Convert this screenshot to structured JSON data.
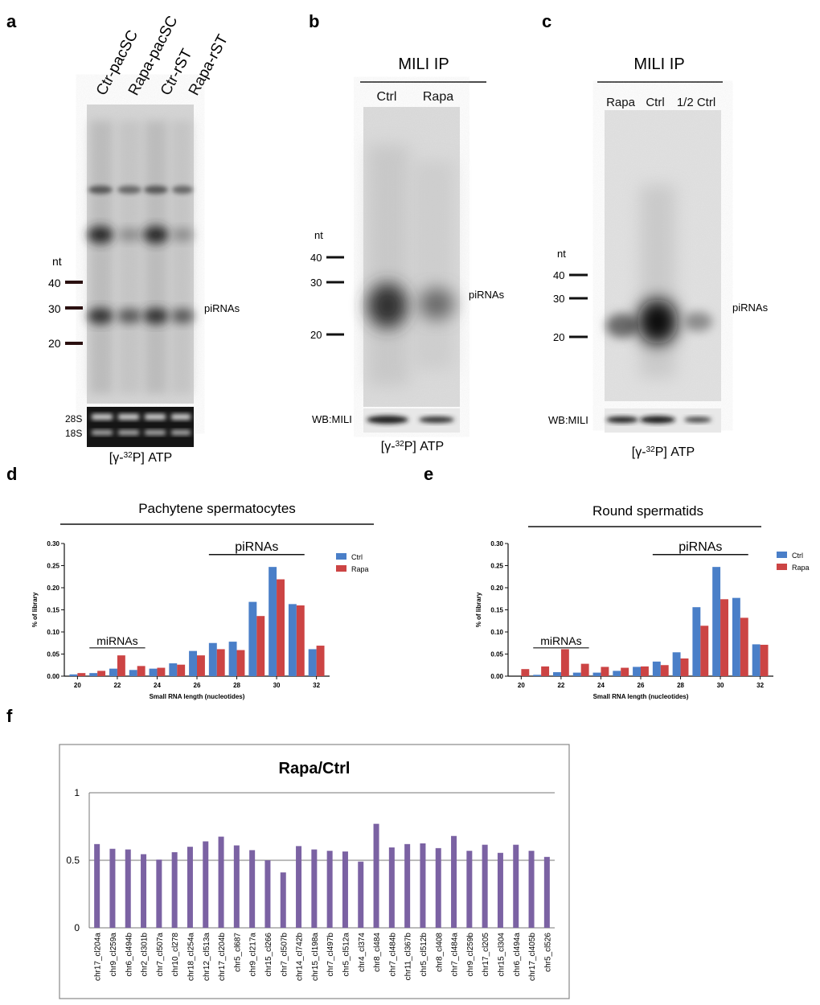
{
  "panel_a": {
    "letter": "a",
    "lanes": [
      "Ctr-pacSC",
      "Rapa-pacSC",
      "Ctr-rST",
      "Rapa-rST"
    ],
    "nt_label": "nt",
    "markers": [
      "40",
      "30",
      "20"
    ],
    "band_label": "piRNAs",
    "rrna_labels": [
      "28S",
      "18S"
    ],
    "caption": "[γ-32P] ATP"
  },
  "panel_b": {
    "letter": "b",
    "title": "MILI IP",
    "lanes": [
      "Ctrl",
      "Rapa"
    ],
    "nt_label": "nt",
    "markers": [
      "40",
      "30",
      "20"
    ],
    "band_label": "piRNAs",
    "wb_label": "WB:MILI",
    "caption": "[γ-32P] ATP"
  },
  "panel_c": {
    "letter": "c",
    "title": "MILI IP",
    "lanes": [
      "Rapa",
      "Ctrl",
      "1/2 Ctrl"
    ],
    "nt_label": "nt",
    "markers": [
      "40",
      "30",
      "20"
    ],
    "band_label": "piRNAs",
    "wb_label": "WB:MILI",
    "caption": "[γ-32P] ATP"
  },
  "colors": {
    "ctrl": "#4a7fc8",
    "rapa": "#cc4444",
    "purple": "#7b62a3"
  },
  "chart_data": [
    {
      "id": "d",
      "type": "bar",
      "letter": "d",
      "title": "Pachytene spermatocytes",
      "xlabel": "Small RNA length (nucleotides)",
      "ylabel": "% of library",
      "ylim": [
        0,
        0.3
      ],
      "yticks": [
        "0.00",
        "0.05",
        "0.10",
        "0.15",
        "0.20",
        "0.25",
        "0.30"
      ],
      "categories": [
        20,
        21,
        22,
        23,
        24,
        25,
        26,
        27,
        28,
        29,
        30,
        31,
        32
      ],
      "xticks": [
        "20",
        "22",
        "24",
        "26",
        "28",
        "30",
        "32"
      ],
      "series": [
        {
          "name": "Ctrl",
          "values": [
            0.004,
            0.007,
            0.017,
            0.014,
            0.017,
            0.029,
            0.057,
            0.075,
            0.078,
            0.168,
            0.247,
            0.163,
            0.061
          ]
        },
        {
          "name": "Rapa",
          "values": [
            0.007,
            0.012,
            0.047,
            0.023,
            0.019,
            0.026,
            0.047,
            0.061,
            0.059,
            0.136,
            0.219,
            0.16,
            0.069
          ]
        }
      ],
      "annotations": {
        "mirnas": "miRNAs",
        "pirnas": "piRNAs"
      },
      "legend": "top-right"
    },
    {
      "id": "e",
      "type": "bar",
      "letter": "e",
      "title": "Round spermatids",
      "xlabel": "Small RNA length (nucleotides)",
      "ylabel": "% of library",
      "ylim": [
        0,
        0.3
      ],
      "yticks": [
        "0.00",
        "0.05",
        "0.10",
        "0.15",
        "0.20",
        "0.25",
        "0.30"
      ],
      "categories": [
        20,
        21,
        22,
        23,
        24,
        25,
        26,
        27,
        28,
        29,
        30,
        31,
        32
      ],
      "xticks": [
        "20",
        "22",
        "24",
        "26",
        "28",
        "30",
        "32"
      ],
      "series": [
        {
          "name": "Ctrl",
          "values": [
            0.0,
            0.003,
            0.009,
            0.008,
            0.008,
            0.012,
            0.021,
            0.033,
            0.054,
            0.156,
            0.247,
            0.177,
            0.072
          ]
        },
        {
          "name": "Rapa",
          "values": [
            0.016,
            0.022,
            0.061,
            0.028,
            0.021,
            0.019,
            0.022,
            0.025,
            0.04,
            0.114,
            0.174,
            0.132,
            0.071
          ]
        }
      ],
      "annotations": {
        "mirnas": "miRNAs",
        "pirnas": "piRNAs"
      },
      "legend": "top-right"
    },
    {
      "id": "f",
      "type": "bar",
      "letter": "f",
      "title": "Rapa/Ctrl",
      "ylim": [
        0,
        1
      ],
      "yticks": [
        "0",
        "0.5",
        "1"
      ],
      "categories": [
        "chr17_cl204a",
        "chr9_cl259a",
        "chr6_cl494b",
        "chr2_cl301b",
        "chr7_cl507a",
        "chr10_cl278",
        "chr18_cl254a",
        "chr12_cl513a",
        "chr17_cl204b",
        "chr5_cl687",
        "chr9_cl217a",
        "chr15_cl266",
        "chr7_cl507b",
        "chr14_cl742b",
        "chr15_cl198a",
        "chr7_cl497b",
        "chr5_cl512a",
        "chr4_cl374",
        "chr8_cl484",
        "chr7_cl484b",
        "chr11_cl367b",
        "chr5_cl512b",
        "chr8_cl408",
        "chr7_cl484a",
        "chr9_cl259b",
        "chr17_cl205",
        "chr15_cl304",
        "chr6_cl494a",
        "chr17_cl405b",
        "chr5_cl526"
      ],
      "values": [
        0.62,
        0.585,
        0.58,
        0.545,
        0.505,
        0.56,
        0.6,
        0.64,
        0.675,
        0.61,
        0.575,
        0.5,
        0.41,
        0.605,
        0.58,
        0.57,
        0.565,
        0.49,
        0.77,
        0.595,
        0.62,
        0.625,
        0.59,
        0.68,
        0.57,
        0.615,
        0.555,
        0.615,
        0.57,
        0.525
      ]
    }
  ]
}
